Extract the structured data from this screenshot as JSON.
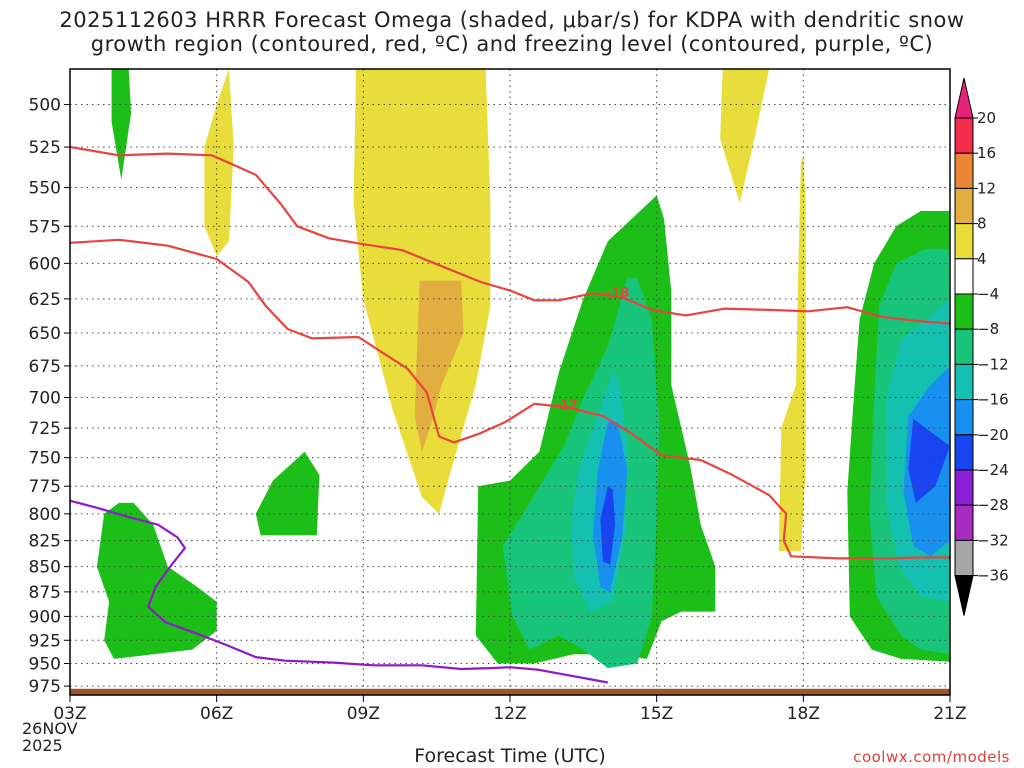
{
  "title": {
    "line1": "2025112603 HRRR Forecast Omega (shaded, μbar/s) for KDPA with dendritic snow",
    "line2": "growth region (contoured, red, ºC) and freezing level (contoured, purple, ºC)"
  },
  "credit": "coolwx.com/models",
  "date_label": {
    "line1": "26NOV",
    "line2": "2025"
  },
  "chart_data": {
    "type": "time-height cross section",
    "xlabel": "Forecast Time (UTC)",
    "x_ticks": [
      "03Z",
      "06Z",
      "09Z",
      "12Z",
      "15Z",
      "18Z",
      "21Z"
    ],
    "x_range_hours": [
      3,
      21
    ],
    "y_axis": "pressure (hPa), inverted",
    "y_range": [
      480,
      985
    ],
    "y_ticks": [
      500,
      525,
      550,
      575,
      600,
      625,
      650,
      675,
      700,
      725,
      750,
      775,
      800,
      825,
      850,
      875,
      900,
      925,
      950,
      975
    ],
    "ground_level_hPa": 978,
    "colorbar": {
      "labels": [
        "20",
        "16",
        "12",
        "8",
        "4",
        "−4",
        "−8",
        "−12",
        "−16",
        "−20",
        "−24",
        "−28",
        "−32",
        "−36"
      ],
      "segment_colors": [
        "#f22c4a",
        "#e98736",
        "#e2ae40",
        "#e8dd3a",
        "#ffffff",
        "#1bbf18",
        "#18c47a",
        "#14c1b0",
        "#1890f0",
        "#1845f0",
        "#8a1fd6",
        "#a82cc0",
        "#a6a6a6"
      ],
      "top_arrow_color": "#e8227a",
      "bottom_arrow_color": "#000000"
    },
    "shaded_omega": [
      {
        "level": "4",
        "color": "#e8dd3a",
        "points": [
          [
            6.25,
            480
          ],
          [
            6.0,
            500
          ],
          [
            5.75,
            525
          ],
          [
            5.75,
            575
          ],
          [
            6.0,
            595
          ],
          [
            6.25,
            585
          ],
          [
            6.35,
            525
          ]
        ]
      },
      {
        "level": "4",
        "color": "#e8dd3a",
        "points": [
          [
            8.85,
            480
          ],
          [
            8.8,
            560
          ],
          [
            9.0,
            625
          ],
          [
            9.6,
            710
          ],
          [
            10.2,
            785
          ],
          [
            10.55,
            800
          ],
          [
            10.8,
            760
          ],
          [
            11.3,
            690
          ],
          [
            11.6,
            630
          ],
          [
            11.6,
            560
          ],
          [
            11.5,
            480
          ]
        ]
      },
      {
        "level": "8",
        "color": "#e2ae40",
        "points": [
          [
            10.15,
            612
          ],
          [
            11.0,
            612
          ],
          [
            11.05,
            650
          ],
          [
            10.6,
            690
          ],
          [
            10.4,
            720
          ],
          [
            10.2,
            745
          ],
          [
            10.05,
            715
          ],
          [
            10.1,
            660
          ]
        ]
      },
      {
        "level": "4",
        "color": "#e8dd3a",
        "points": [
          [
            16.35,
            480
          ],
          [
            16.3,
            520
          ],
          [
            16.7,
            560
          ],
          [
            17.0,
            520
          ],
          [
            17.3,
            480
          ]
        ]
      },
      {
        "level": "4",
        "color": "#e8dd3a",
        "points": [
          [
            17.95,
            535
          ],
          [
            17.9,
            600
          ],
          [
            17.85,
            690
          ],
          [
            17.55,
            725
          ],
          [
            17.5,
            835
          ],
          [
            17.95,
            835
          ],
          [
            18.05,
            760
          ],
          [
            18.05,
            560
          ],
          [
            18.0,
            530
          ]
        ]
      },
      {
        "level": "-4",
        "color": "#1bbf18",
        "points": [
          [
            3.85,
            480
          ],
          [
            3.85,
            510
          ],
          [
            4.05,
            545
          ],
          [
            4.25,
            505
          ],
          [
            4.2,
            480
          ]
        ]
      },
      {
        "level": "-4",
        "color": "#1bbf18",
        "points": [
          [
            7.8,
            745
          ],
          [
            7.15,
            770
          ],
          [
            6.8,
            800
          ],
          [
            6.9,
            820
          ],
          [
            8.05,
            820
          ],
          [
            8.1,
            765
          ]
        ]
      },
      {
        "level": "-4",
        "color": "#1bbf18",
        "points": [
          [
            4.0,
            790
          ],
          [
            3.7,
            800
          ],
          [
            3.55,
            850
          ],
          [
            3.8,
            885
          ],
          [
            3.7,
            925
          ],
          [
            3.9,
            945
          ],
          [
            5.5,
            935
          ],
          [
            6.0,
            915
          ],
          [
            6.0,
            885
          ],
          [
            5.6,
            870
          ],
          [
            5.0,
            850
          ],
          [
            4.7,
            810
          ],
          [
            4.3,
            790
          ]
        ]
      },
      {
        "level": "-4",
        "color": "#1bbf18",
        "points": [
          [
            15.0,
            555
          ],
          [
            14.0,
            585
          ],
          [
            13.5,
            625
          ],
          [
            13.0,
            680
          ],
          [
            12.6,
            745
          ],
          [
            12.0,
            770
          ],
          [
            11.35,
            775
          ],
          [
            11.3,
            920
          ],
          [
            11.75,
            950
          ],
          [
            12.5,
            950
          ],
          [
            13.3,
            940
          ],
          [
            14.2,
            940
          ],
          [
            14.8,
            945
          ],
          [
            15.1,
            905
          ],
          [
            15.5,
            895
          ],
          [
            16.2,
            895
          ],
          [
            16.2,
            850
          ],
          [
            15.9,
            810
          ],
          [
            15.7,
            760
          ],
          [
            15.3,
            690
          ],
          [
            15.3,
            620
          ],
          [
            15.15,
            570
          ]
        ]
      },
      {
        "level": "-4",
        "color": "#1bbf18",
        "points": [
          [
            20.4,
            565
          ],
          [
            19.9,
            575
          ],
          [
            19.45,
            600
          ],
          [
            19.15,
            640
          ],
          [
            19.05,
            690
          ],
          [
            18.9,
            780
          ],
          [
            18.95,
            900
          ],
          [
            19.4,
            935
          ],
          [
            20.0,
            945
          ],
          [
            21.0,
            948
          ],
          [
            21.0,
            565
          ]
        ]
      },
      {
        "level": "-8",
        "color": "#18c47a",
        "points": [
          [
            14.4,
            610
          ],
          [
            14.0,
            660
          ],
          [
            13.5,
            700
          ],
          [
            13.1,
            740
          ],
          [
            12.4,
            790
          ],
          [
            11.85,
            830
          ],
          [
            12.05,
            900
          ],
          [
            12.4,
            935
          ],
          [
            13.0,
            920
          ],
          [
            13.5,
            935
          ],
          [
            14.0,
            955
          ],
          [
            14.6,
            950
          ],
          [
            14.9,
            900
          ],
          [
            15.0,
            810
          ],
          [
            15.05,
            720
          ],
          [
            14.9,
            640
          ],
          [
            14.6,
            610
          ]
        ]
      },
      {
        "level": "-8",
        "color": "#18c47a",
        "points": [
          [
            21.0,
            590
          ],
          [
            20.5,
            590
          ],
          [
            19.9,
            600
          ],
          [
            19.55,
            630
          ],
          [
            19.45,
            700
          ],
          [
            19.35,
            800
          ],
          [
            19.5,
            880
          ],
          [
            20.0,
            920
          ],
          [
            20.4,
            935
          ],
          [
            21.0,
            940
          ]
        ]
      },
      {
        "level": "-12",
        "color": "#14c1b0",
        "points": [
          [
            14.1,
            680
          ],
          [
            13.75,
            720
          ],
          [
            13.4,
            760
          ],
          [
            13.25,
            810
          ],
          [
            13.3,
            860
          ],
          [
            13.65,
            895
          ],
          [
            14.1,
            885
          ],
          [
            14.35,
            820
          ],
          [
            14.4,
            740
          ],
          [
            14.25,
            690
          ]
        ]
      },
      {
        "level": "-12",
        "color": "#14c1b0",
        "points": [
          [
            21.0,
            625
          ],
          [
            20.5,
            640
          ],
          [
            20.0,
            655
          ],
          [
            19.7,
            700
          ],
          [
            19.7,
            790
          ],
          [
            19.95,
            850
          ],
          [
            20.4,
            880
          ],
          [
            21.0,
            885
          ]
        ]
      },
      {
        "level": "-16",
        "color": "#1890f0",
        "points": [
          [
            14.0,
            720
          ],
          [
            13.8,
            760
          ],
          [
            13.7,
            820
          ],
          [
            13.85,
            870
          ],
          [
            14.05,
            875
          ],
          [
            14.3,
            820
          ],
          [
            14.4,
            760
          ],
          [
            14.2,
            720
          ]
        ]
      },
      {
        "level": "-16",
        "color": "#1890f0",
        "points": [
          [
            21.0,
            675
          ],
          [
            20.6,
            690
          ],
          [
            20.15,
            715
          ],
          [
            20.05,
            780
          ],
          [
            20.25,
            830
          ],
          [
            20.6,
            840
          ],
          [
            21.0,
            825
          ]
        ]
      },
      {
        "level": "-20",
        "color": "#1845f0",
        "points": [
          [
            14.0,
            775
          ],
          [
            13.85,
            805
          ],
          [
            13.9,
            845
          ],
          [
            14.05,
            848
          ],
          [
            14.15,
            810
          ],
          [
            14.1,
            778
          ]
        ]
      },
      {
        "level": "-20",
        "color": "#1845f0",
        "points": [
          [
            20.25,
            717
          ],
          [
            20.15,
            760
          ],
          [
            20.3,
            790
          ],
          [
            20.7,
            775
          ],
          [
            21.0,
            740
          ],
          [
            20.5,
            725
          ]
        ]
      }
    ],
    "dgz_contours": [
      {
        "value": -18,
        "color": "#e8443f",
        "label": "-18",
        "label_at": [
          14.2,
          620
        ],
        "points": [
          [
            3,
            525
          ],
          [
            4,
            530
          ],
          [
            5,
            529
          ],
          [
            5.9,
            530
          ],
          [
            6.8,
            542
          ],
          [
            7.3,
            560
          ],
          [
            7.65,
            575
          ],
          [
            8.3,
            583
          ],
          [
            9.0,
            587
          ],
          [
            9.8,
            591
          ],
          [
            10.6,
            602
          ],
          [
            11.4,
            613
          ],
          [
            12.0,
            619
          ],
          [
            12.5,
            626
          ],
          [
            13.0,
            626
          ],
          [
            13.7,
            621
          ],
          [
            14.3,
            624
          ],
          [
            14.9,
            633
          ],
          [
            15.6,
            637
          ],
          [
            16.4,
            632
          ],
          [
            17.3,
            633
          ],
          [
            18.1,
            634
          ],
          [
            18.9,
            631
          ],
          [
            19.6,
            638
          ],
          [
            20.3,
            641
          ],
          [
            21,
            643
          ]
        ]
      },
      {
        "value": -12,
        "color": "#e8443f",
        "label": "-12",
        "label_at": [
          13.15,
          705
        ],
        "points": [
          [
            3,
            586
          ],
          [
            4,
            584
          ],
          [
            5,
            588
          ],
          [
            6,
            597
          ],
          [
            6.65,
            613
          ],
          [
            7.0,
            630
          ],
          [
            7.45,
            647
          ],
          [
            7.95,
            654
          ],
          [
            8.9,
            653
          ],
          [
            9.4,
            665
          ],
          [
            9.9,
            677
          ],
          [
            10.3,
            696
          ],
          [
            10.55,
            732
          ],
          [
            10.85,
            737
          ],
          [
            11.35,
            730
          ],
          [
            11.9,
            720
          ],
          [
            12.5,
            705
          ],
          [
            13.2,
            708
          ],
          [
            13.9,
            715
          ],
          [
            14.5,
            730
          ],
          [
            15.1,
            748
          ],
          [
            15.9,
            752
          ],
          [
            16.5,
            764
          ],
          [
            17.3,
            783
          ],
          [
            17.65,
            800
          ],
          [
            17.6,
            825
          ],
          [
            17.75,
            840
          ],
          [
            18.7,
            842
          ],
          [
            19.6,
            842
          ],
          [
            20.6,
            841
          ],
          [
            21,
            841
          ]
        ]
      }
    ],
    "freezing_level_contours": [
      {
        "value": 0,
        "color": "#8f18c8",
        "points": [
          [
            3,
            788
          ],
          [
            3.6,
            795
          ],
          [
            4.2,
            803
          ],
          [
            4.8,
            810
          ],
          [
            5.2,
            822
          ],
          [
            5.35,
            832
          ],
          [
            5.05,
            850
          ],
          [
            4.75,
            870
          ],
          [
            4.6,
            890
          ],
          [
            4.95,
            906
          ],
          [
            5.6,
            918
          ],
          [
            6.2,
            930
          ],
          [
            6.8,
            943
          ],
          [
            7.4,
            947
          ],
          [
            8.4,
            949
          ],
          [
            9.2,
            952
          ],
          [
            10.2,
            952
          ],
          [
            11,
            956
          ],
          [
            11.6,
            955
          ],
          [
            12.0,
            954
          ],
          [
            12.6,
            957
          ],
          [
            13.2,
            963
          ],
          [
            14,
            971
          ]
        ]
      }
    ]
  }
}
